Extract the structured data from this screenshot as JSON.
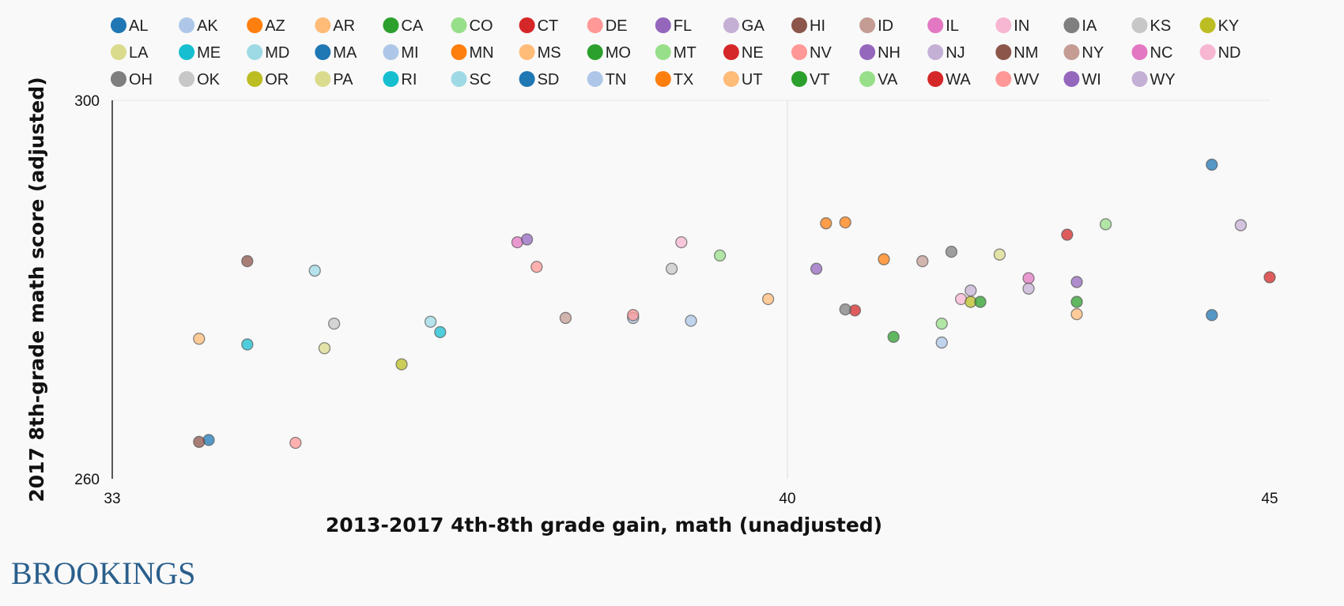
{
  "brand": {
    "logo_text": "BROOKINGS"
  },
  "chart_data": {
    "type": "scatter",
    "xlabel": "2013-2017 4th-8th grade gain, math (unadjusted)",
    "ylabel": "2017 8th-grade math score (adjusted)",
    "xlim": [
      33,
      45
    ],
    "ylim": [
      260,
      300
    ],
    "x_ticks": [
      "33",
      "40",
      "45"
    ],
    "y_ticks": [
      "300",
      "260"
    ],
    "x_gridline": 40,
    "legend_position": "top",
    "points": [
      {
        "name": "AL",
        "color": "#1f77b4",
        "x": 34.0,
        "y": 264.1
      },
      {
        "name": "AK",
        "color": "#aec7e8",
        "x": 38.4,
        "y": 277.0
      },
      {
        "name": "AZ",
        "color": "#ff7f0e",
        "x": 40.4,
        "y": 287.0
      },
      {
        "name": "AR",
        "color": "#ffbb78",
        "x": 33.9,
        "y": 274.8
      },
      {
        "name": "CA",
        "color": "#2ca02c",
        "x": 41.1,
        "y": 275.0
      },
      {
        "name": "CO",
        "color": "#98df8a",
        "x": 39.3,
        "y": 283.6
      },
      {
        "name": "CT",
        "color": "#d62728",
        "x": 40.7,
        "y": 277.8
      },
      {
        "name": "DE",
        "color": "#ff9896",
        "x": 34.9,
        "y": 263.8
      },
      {
        "name": "FL",
        "color": "#9467bd",
        "x": 40.3,
        "y": 282.2
      },
      {
        "name": "GA",
        "color": "#c5b0d5",
        "x": 41.9,
        "y": 279.9
      },
      {
        "name": "HI",
        "color": "#8c564b",
        "x": 34.4,
        "y": 283.0
      },
      {
        "name": "ID",
        "color": "#c49c94",
        "x": 41.4,
        "y": 283.0
      },
      {
        "name": "IL",
        "color": "#e377c2",
        "x": 37.2,
        "y": 285.0
      },
      {
        "name": "IN",
        "color": "#f7b6d2",
        "x": 41.8,
        "y": 279.0
      },
      {
        "name": "IA",
        "color": "#7f7f7f",
        "x": 41.7,
        "y": 284.0
      },
      {
        "name": "KS",
        "color": "#c7c7c7",
        "x": 38.8,
        "y": 282.2
      },
      {
        "name": "KY",
        "color": "#bcbd22",
        "x": 41.9,
        "y": 278.7
      },
      {
        "name": "LA",
        "color": "#dbdb8d",
        "x": 35.2,
        "y": 273.8
      },
      {
        "name": "ME",
        "color": "#17becf",
        "x": 34.4,
        "y": 274.2
      },
      {
        "name": "MD",
        "color": "#9edae5",
        "x": 35.1,
        "y": 282.0
      },
      {
        "name": "MA",
        "color": "#1f77b4",
        "x": 44.4,
        "y": 293.2
      },
      {
        "name": "MI",
        "color": "#aec7e8",
        "x": 39.0,
        "y": 276.7
      },
      {
        "name": "MN",
        "color": "#ff7f0e",
        "x": 40.6,
        "y": 287.1
      },
      {
        "name": "MS",
        "color": "#ffbb78",
        "x": 39.8,
        "y": 279.0
      },
      {
        "name": "MO",
        "color": "#2ca02c",
        "x": 42.0,
        "y": 278.7
      },
      {
        "name": "MT",
        "color": "#98df8a",
        "x": 41.6,
        "y": 276.4
      },
      {
        "name": "NE",
        "color": "#d62728",
        "x": 42.9,
        "y": 285.8
      },
      {
        "name": "NV",
        "color": "#ff9896",
        "x": 37.4,
        "y": 282.4
      },
      {
        "name": "NH",
        "color": "#9467bd",
        "x": 37.3,
        "y": 285.3
      },
      {
        "name": "NJ",
        "color": "#c5b0d5",
        "x": 44.7,
        "y": 286.8
      },
      {
        "name": "NM",
        "color": "#8c564b",
        "x": 33.9,
        "y": 263.9
      },
      {
        "name": "NY",
        "color": "#c49c94",
        "x": 37.7,
        "y": 277.0
      },
      {
        "name": "NC",
        "color": "#e377c2",
        "x": 42.5,
        "y": 281.2
      },
      {
        "name": "ND",
        "color": "#f7b6d2",
        "x": 38.9,
        "y": 285.0
      },
      {
        "name": "OH",
        "color": "#7f7f7f",
        "x": 40.6,
        "y": 277.9
      },
      {
        "name": "OK",
        "color": "#c7c7c7",
        "x": 35.3,
        "y": 276.4
      },
      {
        "name": "OR",
        "color": "#bcbd22",
        "x": 36.0,
        "y": 272.1
      },
      {
        "name": "PA",
        "color": "#dbdb8d",
        "x": 42.2,
        "y": 283.7
      },
      {
        "name": "RI",
        "color": "#17becf",
        "x": 36.4,
        "y": 275.5
      },
      {
        "name": "SC",
        "color": "#9edae5",
        "x": 36.3,
        "y": 276.6
      },
      {
        "name": "SD",
        "color": "#1f77b4",
        "x": 44.4,
        "y": 277.3
      },
      {
        "name": "TN",
        "color": "#aec7e8",
        "x": 41.6,
        "y": 274.4
      },
      {
        "name": "TX",
        "color": "#ff7f0e",
        "x": 41.0,
        "y": 283.2
      },
      {
        "name": "UT",
        "color": "#ffbb78",
        "x": 43.0,
        "y": 277.4
      },
      {
        "name": "VT",
        "color": "#2ca02c",
        "x": 43.0,
        "y": 278.7
      },
      {
        "name": "VA",
        "color": "#98df8a",
        "x": 43.3,
        "y": 286.9
      },
      {
        "name": "WA",
        "color": "#d62728",
        "x": 45.0,
        "y": 281.3
      },
      {
        "name": "WV",
        "color": "#ff9896",
        "x": 38.4,
        "y": 277.3
      },
      {
        "name": "WI",
        "color": "#9467bd",
        "x": 43.0,
        "y": 280.8
      },
      {
        "name": "WY",
        "color": "#c5b0d5",
        "x": 42.5,
        "y": 280.1
      }
    ]
  }
}
